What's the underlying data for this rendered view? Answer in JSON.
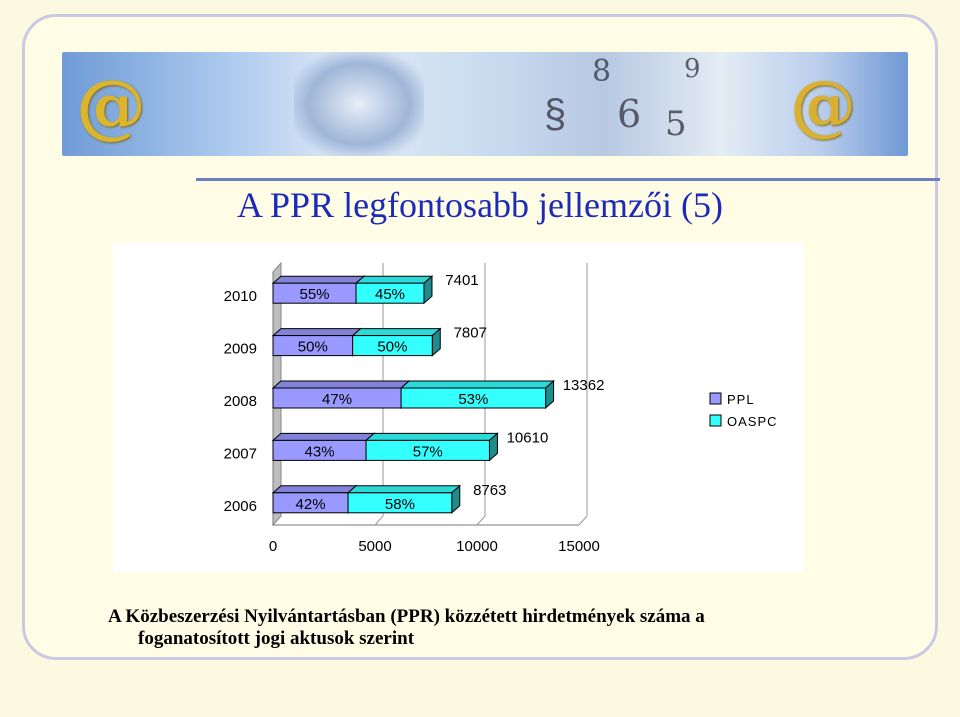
{
  "title": "A PPR legfontosabb jellemzői (5)",
  "caption": {
    "line1": "A Közbeszerzési Nyilvántartásban (PPR) közzétett hirdetmények száma a",
    "line2": "foganatosított jogi aktusok szerint"
  },
  "colors": {
    "ppl": "#9999ff",
    "oaspc": "#33ffff",
    "accent": "#1b2bb8"
  },
  "chart_data": {
    "type": "bar",
    "orientation": "horizontal",
    "stacked": true,
    "categories": [
      "2006",
      "2007",
      "2008",
      "2009",
      "2010"
    ],
    "series": [
      {
        "name": "PPL",
        "values": [
          3680,
          4562,
          6280,
          3904,
          4071
        ],
        "labels": [
          "42%",
          "43%",
          "47%",
          "50%",
          "55%"
        ],
        "color": "#9999ff"
      },
      {
        "name": "OASPC",
        "values": [
          5083,
          6048,
          7082,
          3903,
          3330
        ],
        "labels": [
          "58%",
          "57%",
          "53%",
          "50%",
          "45%"
        ],
        "color": "#33ffff"
      }
    ],
    "totals": [
      "8763",
      "10610",
      "13362",
      "7807",
      "7401"
    ],
    "xlim": [
      0,
      15000
    ],
    "xticks": [
      "0",
      "5000",
      "10000",
      "15000"
    ],
    "grid": true,
    "legend": "right"
  }
}
